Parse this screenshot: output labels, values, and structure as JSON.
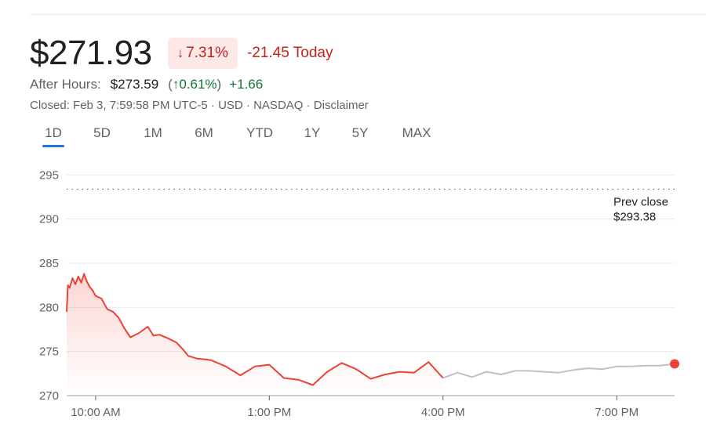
{
  "quote": {
    "price": "$271.93",
    "change_pct": "7.31%",
    "change_direction": "down",
    "change_today": "-21.45 Today",
    "after_hours_label": "After Hours:",
    "after_hours_price": "$273.59",
    "after_hours_pct": "0.61%",
    "after_hours_abs": "+1.66",
    "meta": "Closed: Feb 3, 7:59:58 PM UTC-5 · USD · NASDAQ · Disclaimer"
  },
  "range_tabs": {
    "items": [
      "1D",
      "5D",
      "1M",
      "6M",
      "YTD",
      "1Y",
      "5Y",
      "MAX"
    ],
    "active": "1D"
  },
  "colors": {
    "negative": "#ea4335",
    "negative_text": "#c5221f",
    "positive_text": "#137333",
    "after_hours_line": "#bdc1c6",
    "accent": "#1a73e8"
  },
  "chart_data": {
    "type": "line",
    "ylim": [
      270,
      296
    ],
    "y_ticks": [
      295,
      290,
      285,
      280,
      275,
      270
    ],
    "x_range": [
      9.5,
      20.0
    ],
    "x_ticks": [
      {
        "value": 10,
        "label": "10:00 AM"
      },
      {
        "value": 13,
        "label": "1:00 PM"
      },
      {
        "value": 16,
        "label": "4:00 PM"
      },
      {
        "value": 19,
        "label": "7:00 PM"
      }
    ],
    "prev_close": {
      "label": "Prev close",
      "value_label": "$293.38",
      "value": 293.38
    },
    "grid": true,
    "series": [
      {
        "session": "regular",
        "x": [
          9.5,
          9.52,
          9.55,
          9.6,
          9.65,
          9.7,
          9.75,
          9.8,
          9.85,
          9.9,
          9.95,
          10.0,
          10.1,
          10.2,
          10.3,
          10.4,
          10.5,
          10.6,
          10.75,
          10.9,
          11.0,
          11.1,
          11.25,
          11.4,
          11.5,
          11.6,
          11.75,
          11.9,
          12.0,
          12.25,
          12.5,
          12.75,
          13.0,
          13.25,
          13.5,
          13.75,
          14.0,
          14.25,
          14.5,
          14.75,
          15.0,
          15.25,
          15.5,
          15.75,
          16.0
        ],
        "y": [
          279.5,
          282.5,
          282.2,
          283.3,
          282.6,
          283.5,
          282.8,
          283.8,
          282.9,
          282.3,
          281.9,
          281.3,
          281.0,
          279.8,
          279.5,
          278.8,
          277.6,
          276.6,
          277.1,
          277.8,
          276.8,
          276.9,
          276.5,
          276.0,
          275.3,
          274.5,
          274.2,
          274.1,
          274.0,
          273.3,
          272.3,
          273.3,
          273.5,
          272.0,
          271.8,
          271.2,
          272.7,
          273.7,
          273.0,
          271.9,
          272.4,
          272.7,
          272.6,
          273.8,
          272.0
        ]
      },
      {
        "session": "after_hours",
        "x": [
          16.0,
          16.25,
          16.5,
          16.75,
          17.0,
          17.25,
          17.5,
          17.75,
          18.0,
          18.25,
          18.5,
          18.75,
          19.0,
          19.25,
          19.5,
          19.75,
          20.0
        ],
        "y": [
          272.0,
          272.6,
          272.1,
          272.7,
          272.4,
          272.8,
          272.8,
          272.7,
          272.6,
          272.9,
          273.1,
          273.0,
          273.3,
          273.3,
          273.4,
          273.4,
          273.59
        ]
      }
    ]
  }
}
